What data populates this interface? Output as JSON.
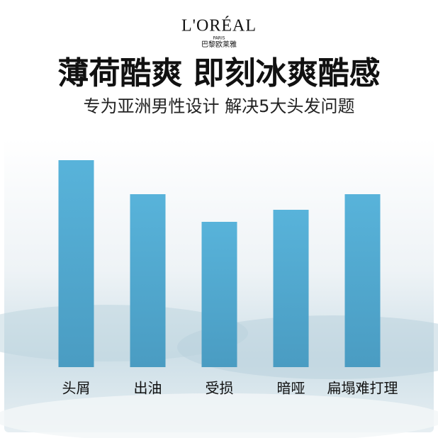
{
  "header": {
    "brand": "L'ORÉAL",
    "brand_sub": "PARIS",
    "brand_cn": "巴黎欧莱雅"
  },
  "chart_data": {
    "type": "bar",
    "title": "薄荷酷爽 即刻冰爽酷感",
    "subtitle": "专为亚洲男性设计 解决5大头发问题",
    "categories": [
      "头屑",
      "出油",
      "受损",
      "暗哑",
      "扁塌难打理"
    ],
    "values": [
      292,
      244,
      205,
      222,
      244
    ],
    "color": "#55aed3"
  }
}
